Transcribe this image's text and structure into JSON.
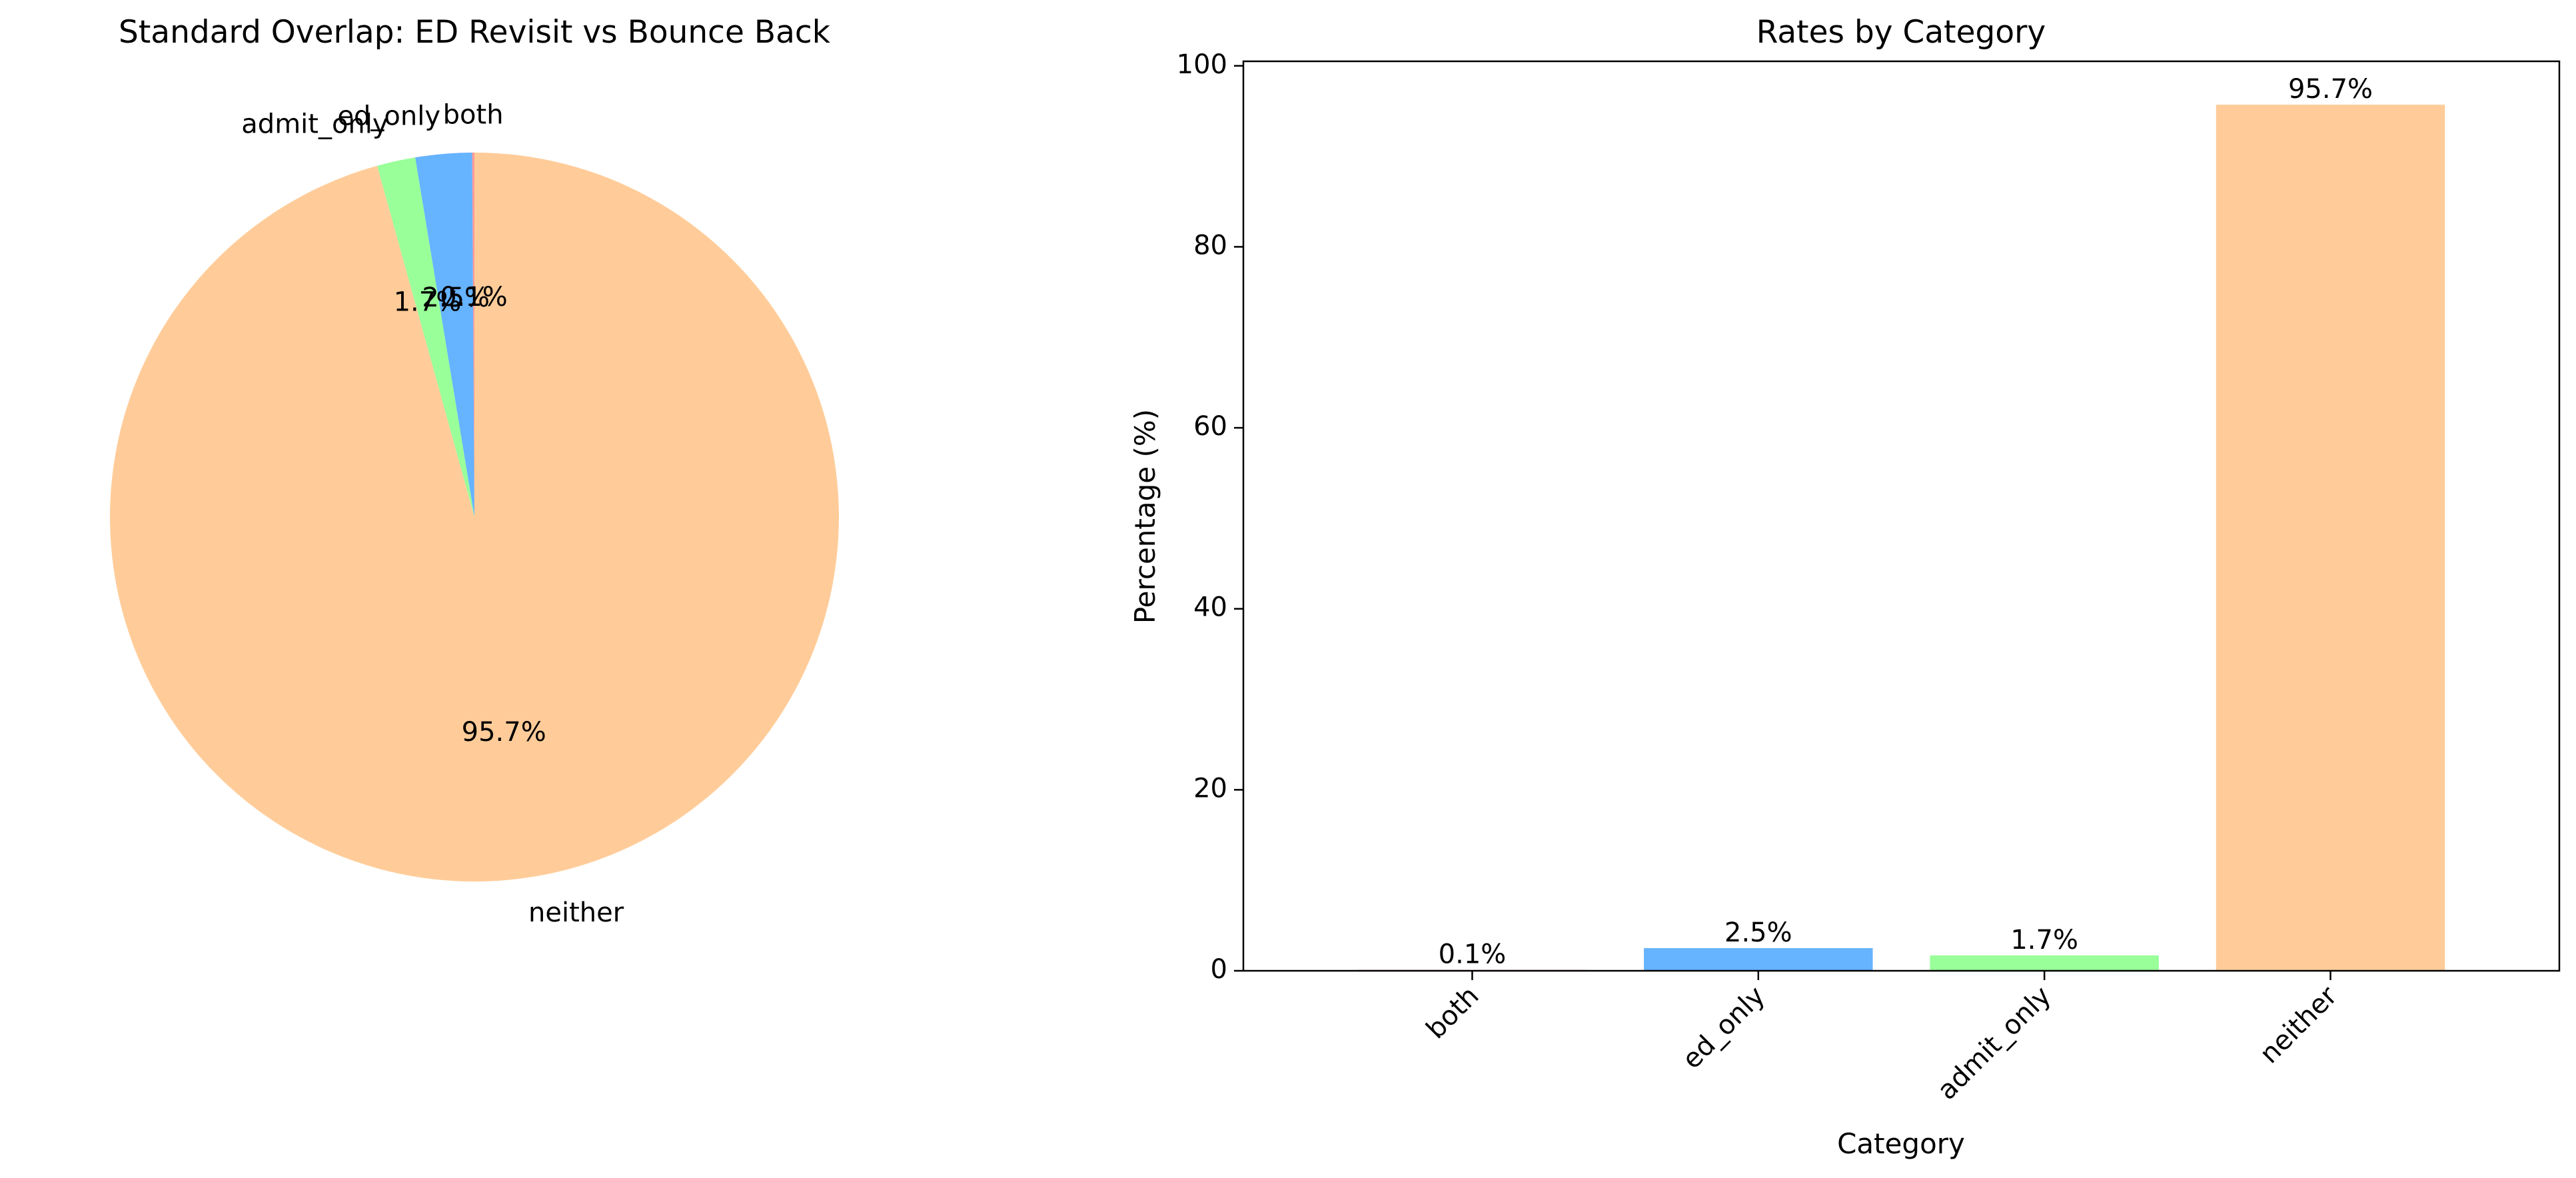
{
  "chart_data": [
    {
      "type": "pie",
      "title": "Standard Overlap: ED Revisit vs Bounce Back",
      "labels": [
        "both",
        "ed_only",
        "admit_only",
        "neither"
      ],
      "values": [
        0.1,
        2.5,
        1.7,
        95.7
      ],
      "autopct_labels": [
        "0.1%",
        "2.5%",
        "1.7%",
        "95.7%"
      ],
      "colors": [
        "#ff9999",
        "#66b3ff",
        "#99ff99",
        "#ffcc99"
      ],
      "start_angle": 90,
      "direction": "counterclockwise"
    },
    {
      "type": "bar",
      "title": "Rates by Category",
      "xlabel": "Category",
      "ylabel": "Percentage (%)",
      "categories": [
        "both",
        "ed_only",
        "admit_only",
        "neither"
      ],
      "values": [
        0.1,
        2.5,
        1.7,
        95.7
      ],
      "data_labels": [
        "0.1%",
        "2.5%",
        "1.7%",
        "95.7%"
      ],
      "colors": [
        "#ff9999",
        "#66b3ff",
        "#99ff99",
        "#ffcc99"
      ],
      "ylim": [
        0,
        100.5
      ],
      "yticks": [
        0,
        20,
        40,
        60,
        80,
        100
      ],
      "ytick_labels": [
        "0",
        "20",
        "40",
        "60",
        "80",
        "100"
      ],
      "grid": false,
      "xtick_rotation": 45
    }
  ]
}
